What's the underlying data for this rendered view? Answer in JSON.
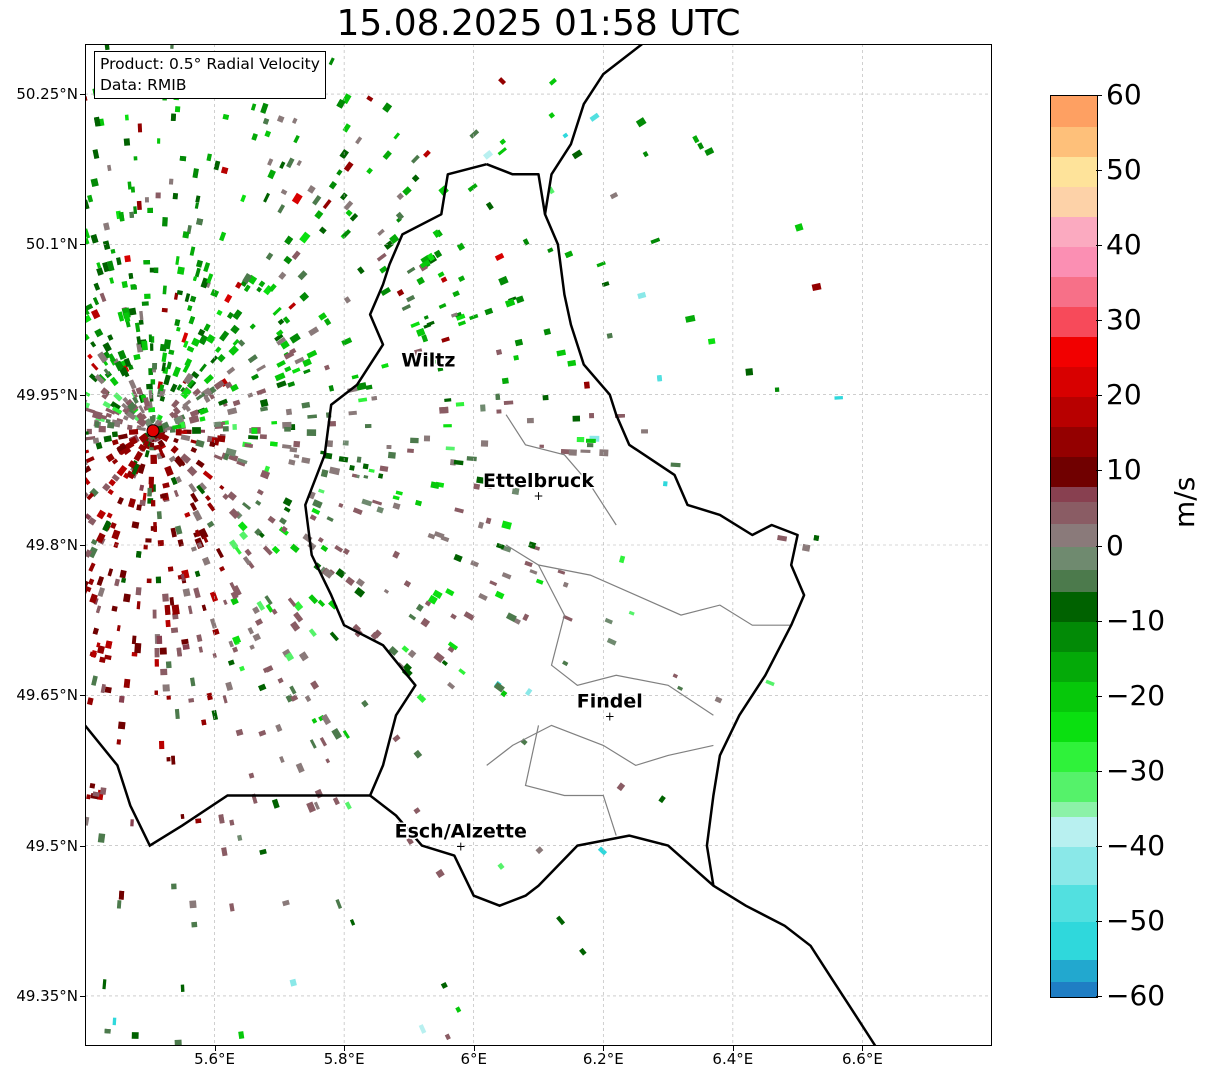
{
  "title": "15.08.2025 01:58 UTC",
  "info": {
    "product": "Product: 0.5° Radial Velocity",
    "source": "Data: RMIB"
  },
  "map": {
    "lon_range": [
      5.4,
      6.8
    ],
    "lat_range": [
      49.3,
      50.3
    ],
    "lat_ticks": [
      {
        "value": 50.25,
        "label": "50.25°N"
      },
      {
        "value": 50.1,
        "label": "50.1°N"
      },
      {
        "value": 49.95,
        "label": "49.95°N"
      },
      {
        "value": 49.8,
        "label": "49.8°N"
      },
      {
        "value": 49.65,
        "label": "49.65°N"
      },
      {
        "value": 49.5,
        "label": "49.5°N"
      },
      {
        "value": 49.35,
        "label": "49.35°N"
      }
    ],
    "lon_ticks": [
      {
        "value": 5.6,
        "label": "5.6°E"
      },
      {
        "value": 5.8,
        "label": "5.8°E"
      },
      {
        "value": 6.0,
        "label": "6°E"
      },
      {
        "value": 6.2,
        "label": "6.2°E"
      },
      {
        "value": 6.4,
        "label": "6.4°E"
      },
      {
        "value": 6.6,
        "label": "6.6°E"
      }
    ],
    "radar_site": {
      "lon": 5.505,
      "lat": 49.914
    },
    "cities": [
      {
        "name": "Wiltz",
        "lon": 5.93,
        "lat": 49.97,
        "marker": false
      },
      {
        "name": "Ettelbruck",
        "lon": 6.1,
        "lat": 49.85,
        "marker": true
      },
      {
        "name": "Findel",
        "lon": 6.21,
        "lat": 49.63,
        "marker": true
      },
      {
        "name": "Esch/Alzette",
        "lon": 5.98,
        "lat": 49.5,
        "marker": true
      }
    ],
    "luxembourg_border": [
      [
        6.02,
        50.18
      ],
      [
        5.96,
        50.17
      ],
      [
        5.95,
        50.13
      ],
      [
        5.89,
        50.11
      ],
      [
        5.87,
        50.08
      ],
      [
        5.86,
        50.06
      ],
      [
        5.84,
        50.03
      ],
      [
        5.86,
        50.0
      ],
      [
        5.82,
        49.96
      ],
      [
        5.78,
        49.94
      ],
      [
        5.77,
        49.89
      ],
      [
        5.74,
        49.84
      ],
      [
        5.75,
        49.79
      ],
      [
        5.78,
        49.75
      ],
      [
        5.8,
        49.72
      ],
      [
        5.86,
        49.7
      ],
      [
        5.91,
        49.66
      ],
      [
        5.88,
        49.63
      ],
      [
        5.86,
        49.58
      ],
      [
        5.84,
        49.55
      ],
      [
        5.88,
        49.53
      ],
      [
        5.92,
        49.5
      ],
      [
        5.97,
        49.49
      ],
      [
        6.0,
        49.45
      ],
      [
        6.04,
        49.44
      ],
      [
        6.08,
        49.45
      ],
      [
        6.1,
        49.46
      ],
      [
        6.16,
        49.5
      ],
      [
        6.24,
        49.51
      ],
      [
        6.3,
        49.5
      ],
      [
        6.37,
        49.46
      ],
      [
        6.36,
        49.5
      ],
      [
        6.37,
        49.55
      ],
      [
        6.38,
        49.59
      ],
      [
        6.41,
        49.63
      ],
      [
        6.45,
        49.67
      ],
      [
        6.49,
        49.72
      ],
      [
        6.51,
        49.75
      ],
      [
        6.49,
        49.78
      ],
      [
        6.5,
        49.81
      ],
      [
        6.46,
        49.82
      ],
      [
        6.43,
        49.81
      ],
      [
        6.38,
        49.83
      ],
      [
        6.33,
        49.84
      ],
      [
        6.31,
        49.87
      ],
      [
        6.24,
        49.9
      ],
      [
        6.22,
        49.93
      ],
      [
        6.21,
        49.95
      ],
      [
        6.17,
        49.98
      ],
      [
        6.15,
        50.02
      ],
      [
        6.14,
        50.05
      ],
      [
        6.13,
        50.1
      ],
      [
        6.11,
        50.13
      ],
      [
        6.1,
        50.17
      ],
      [
        6.06,
        50.17
      ],
      [
        6.02,
        50.18
      ]
    ],
    "germany_border": [
      [
        6.26,
        50.3
      ],
      [
        6.2,
        50.27
      ],
      [
        6.17,
        50.24
      ],
      [
        6.15,
        50.2
      ],
      [
        6.12,
        50.17
      ],
      [
        6.11,
        50.13
      ]
    ],
    "france_border": [
      [
        5.4,
        49.62
      ],
      [
        5.45,
        49.58
      ],
      [
        5.47,
        49.54
      ],
      [
        5.5,
        49.5
      ],
      [
        5.55,
        49.52
      ],
      [
        5.62,
        49.55
      ],
      [
        5.7,
        49.55
      ],
      [
        5.77,
        49.55
      ],
      [
        5.84,
        49.55
      ]
    ],
    "germany_south_border": [
      [
        6.37,
        49.46
      ],
      [
        6.42,
        49.44
      ],
      [
        6.48,
        49.42
      ],
      [
        6.52,
        49.4
      ],
      [
        6.55,
        49.37
      ],
      [
        6.58,
        49.34
      ],
      [
        6.62,
        49.3
      ]
    ],
    "cantons": [
      [
        [
          6.05,
          49.93
        ],
        [
          6.08,
          49.9
        ],
        [
          6.14,
          49.89
        ],
        [
          6.18,
          49.86
        ],
        [
          6.22,
          49.82
        ]
      ],
      [
        [
          6.05,
          49.8
        ],
        [
          6.1,
          49.78
        ],
        [
          6.18,
          49.77
        ],
        [
          6.25,
          49.75
        ],
        [
          6.32,
          49.73
        ],
        [
          6.38,
          49.74
        ],
        [
          6.43,
          49.72
        ],
        [
          6.49,
          49.72
        ]
      ],
      [
        [
          6.1,
          49.78
        ],
        [
          6.14,
          49.73
        ],
        [
          6.12,
          49.68
        ],
        [
          6.16,
          49.66
        ],
        [
          6.22,
          49.67
        ],
        [
          6.3,
          49.66
        ],
        [
          6.37,
          49.63
        ]
      ],
      [
        [
          6.02,
          49.58
        ],
        [
          6.06,
          49.6
        ],
        [
          6.12,
          49.62
        ],
        [
          6.2,
          49.6
        ],
        [
          6.25,
          49.58
        ],
        [
          6.3,
          49.59
        ],
        [
          6.37,
          49.6
        ]
      ],
      [
        [
          6.1,
          49.62
        ],
        [
          6.08,
          49.56
        ],
        [
          6.14,
          49.55
        ],
        [
          6.2,
          49.55
        ],
        [
          6.22,
          49.51
        ]
      ]
    ]
  },
  "colorbar": {
    "label": "m/s",
    "min": -60,
    "max": 60,
    "ticks": [
      {
        "value": 60,
        "label": "60"
      },
      {
        "value": 50,
        "label": "50"
      },
      {
        "value": 40,
        "label": "40"
      },
      {
        "value": 30,
        "label": "30"
      },
      {
        "value": 20,
        "label": "20"
      },
      {
        "value": 10,
        "label": "10"
      },
      {
        "value": 0,
        "label": "0"
      },
      {
        "value": -10,
        "label": "−10"
      },
      {
        "value": -20,
        "label": "−20"
      },
      {
        "value": -30,
        "label": "−30"
      },
      {
        "value": -40,
        "label": "−40"
      },
      {
        "value": -50,
        "label": "−50"
      },
      {
        "value": -60,
        "label": "−60"
      }
    ],
    "segments": [
      {
        "from": -60,
        "to": -58,
        "color": "#1f7ec4"
      },
      {
        "from": -58,
        "to": -55,
        "color": "#22a8cf"
      },
      {
        "from": -55,
        "to": -50,
        "color": "#2fd8dc"
      },
      {
        "from": -50,
        "to": -45,
        "color": "#52e0e0"
      },
      {
        "from": -45,
        "to": -40,
        "color": "#8ae8e8"
      },
      {
        "from": -40,
        "to": -36,
        "color": "#b8f0f0"
      },
      {
        "from": -36,
        "to": -34,
        "color": "#8cf2a8"
      },
      {
        "from": -34,
        "to": -30,
        "color": "#55f26a"
      },
      {
        "from": -30,
        "to": -26,
        "color": "#2ff23a"
      },
      {
        "from": -26,
        "to": -22,
        "color": "#0ae010"
      },
      {
        "from": -22,
        "to": -18,
        "color": "#06c80a"
      },
      {
        "from": -18,
        "to": -14,
        "color": "#04aa08"
      },
      {
        "from": -14,
        "to": -10,
        "color": "#028a06"
      },
      {
        "from": -10,
        "to": -6,
        "color": "#006200"
      },
      {
        "from": -6,
        "to": -3,
        "color": "#4c7a4c"
      },
      {
        "from": -3,
        "to": 0,
        "color": "#6f8a6f"
      },
      {
        "from": 0,
        "to": 3,
        "color": "#8a7a7a"
      },
      {
        "from": 3,
        "to": 6,
        "color": "#8a5c64"
      },
      {
        "from": 6,
        "to": 8,
        "color": "#884050"
      },
      {
        "from": 8,
        "to": 12,
        "color": "#700000"
      },
      {
        "from": 12,
        "to": 16,
        "color": "#940000"
      },
      {
        "from": 16,
        "to": 20,
        "color": "#b80000"
      },
      {
        "from": 20,
        "to": 24,
        "color": "#d80000"
      },
      {
        "from": 24,
        "to": 28,
        "color": "#f20000"
      },
      {
        "from": 28,
        "to": 32,
        "color": "#f74a5a"
      },
      {
        "from": 32,
        "to": 36,
        "color": "#f77088"
      },
      {
        "from": 36,
        "to": 40,
        "color": "#fb8fb3"
      },
      {
        "from": 40,
        "to": 44,
        "color": "#fbaac0"
      },
      {
        "from": 44,
        "to": 48,
        "color": "#fdd2a8"
      },
      {
        "from": 48,
        "to": 52,
        "color": "#fee39a"
      },
      {
        "from": 52,
        "to": 56,
        "color": "#fec07a"
      },
      {
        "from": 56,
        "to": 60,
        "color": "#fea062"
      }
    ]
  }
}
